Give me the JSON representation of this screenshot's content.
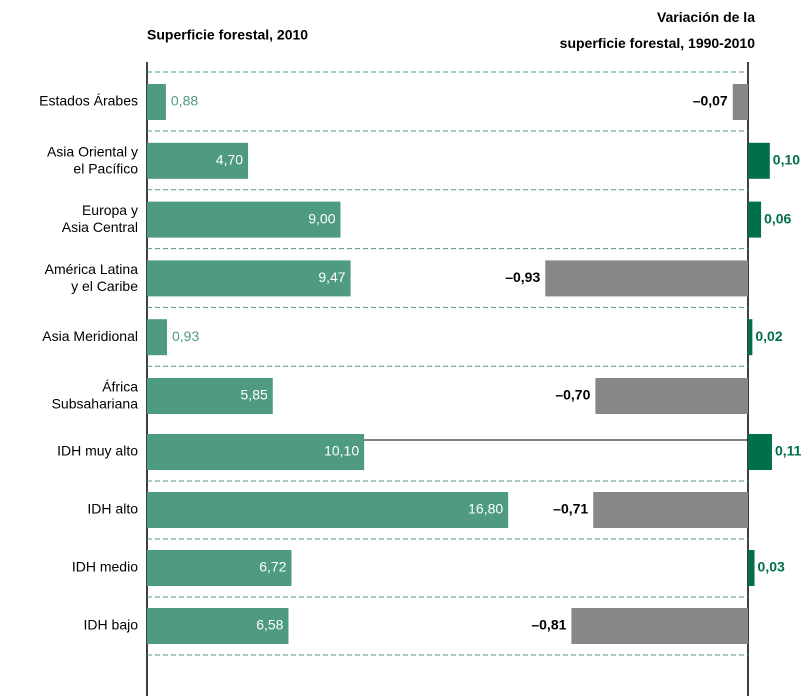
{
  "chart_data": [
    {
      "type": "hbar",
      "title": "Superficie forestal, 2010",
      "categories": [
        "Estados Árabes",
        "Asia Oriental y\nel Pacífico",
        "Europa y\nAsia Central",
        "América Latina\ny el Caribe",
        "Asia Meridional",
        "África\nSubsahariana",
        "IDH muy alto",
        "IDH alto",
        "IDH medio",
        "IDH bajo"
      ],
      "values": [
        0.88,
        4.7,
        9.0,
        9.47,
        0.93,
        5.85,
        10.1,
        16.8,
        6.72,
        6.58
      ],
      "value_labels": [
        "0,88",
        "4,70",
        "9,00",
        "9,47",
        "0,93",
        "5,85",
        "10,10",
        "16,80",
        "6,72",
        "6,58"
      ],
      "color": "#4e9b82",
      "xlim": [
        0,
        20
      ]
    },
    {
      "type": "hbar",
      "title": "Variación de la\nsuperficie forestal, 1990-2010",
      "values": [
        -0.07,
        0.1,
        0.06,
        -0.93,
        0.02,
        -0.7,
        0.11,
        -0.71,
        0.03,
        -0.81
      ],
      "value_labels": [
        "–0,07",
        "0,10",
        "0,06",
        "–0,93",
        "0,02",
        "–0,70",
        "0,11",
        "–0,71",
        "0,03",
        "–0,81"
      ],
      "positive_color": "#00704a",
      "negative_color": "#878787",
      "xlim": [
        -1,
        0.2
      ]
    }
  ]
}
